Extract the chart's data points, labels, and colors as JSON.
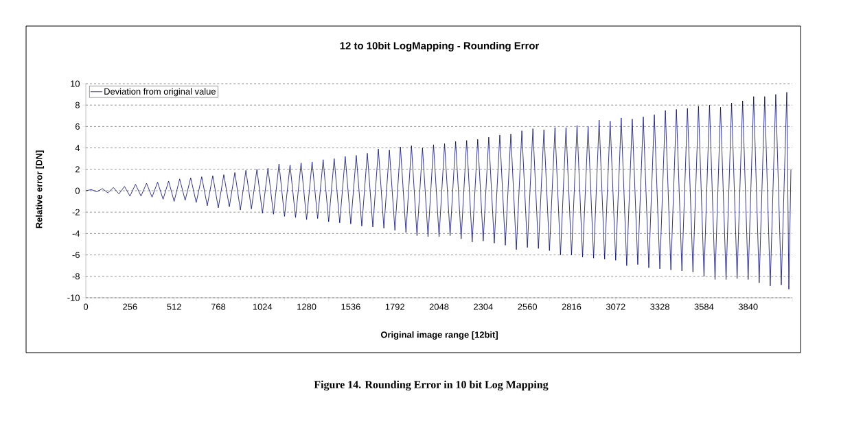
{
  "chart_data": {
    "type": "line",
    "title": "12 to 10bit LogMapping - Rounding Error",
    "xlabel": "Original image range [12bit]",
    "ylabel": "Relative error [DN]",
    "annotations": [
      "Figure 14.  Rounding Error in 10 bit Log Mapping"
    ],
    "xlim": [
      0,
      4096
    ],
    "ylim": [
      -10,
      10
    ],
    "xticks": [
      0,
      {
        "value": 128,
        "label": null
      },
      256,
      {
        "value": 384,
        "label": null
      },
      512,
      {
        "value": 640,
        "label": null
      },
      768,
      {
        "value": 896,
        "label": null
      },
      1024,
      {
        "value": 1152,
        "label": null
      },
      1280,
      {
        "value": 1408,
        "label": null
      },
      1536,
      {
        "value": 1664,
        "label": null
      },
      1792,
      {
        "value": 1920,
        "label": null
      },
      2048,
      {
        "value": 2176,
        "label": null
      },
      2304,
      {
        "value": 2432,
        "label": null
      },
      2560,
      {
        "value": 2688,
        "label": null
      },
      2816,
      {
        "value": 2944,
        "label": null
      },
      3072,
      {
        "value": 3200,
        "label": null
      },
      3328,
      {
        "value": 3456,
        "label": null
      },
      3584,
      {
        "value": 3712,
        "label": null
      },
      3840,
      {
        "value": 3968,
        "label": null
      },
      {
        "value": 4096,
        "label": null
      }
    ],
    "yticks": [
      -10,
      -8,
      -6,
      -4,
      -2,
      0,
      2,
      4,
      6,
      8,
      10
    ],
    "grid": "y",
    "legend": "top left",
    "line_style": "solid",
    "marker": "none",
    "series": [
      {
        "name": "Deviation from original value",
        "color": "#000080",
        "x": [
          0,
          32,
          64,
          96,
          128,
          160,
          192,
          224,
          256,
          288,
          320,
          352,
          384,
          416,
          448,
          480,
          512,
          544,
          576,
          608,
          640,
          672,
          704,
          736,
          768,
          800,
          832,
          864,
          896,
          928,
          960,
          992,
          1024,
          1056,
          1088,
          1120,
          1152,
          1184,
          1216,
          1248,
          1280,
          1312,
          1344,
          1376,
          1408,
          1440,
          1472,
          1504,
          1536,
          1568,
          1600,
          1632,
          1664,
          1696,
          1728,
          1760,
          1792,
          1824,
          1856,
          1888,
          1920,
          1952,
          1984,
          2016,
          2048,
          2080,
          2112,
          2144,
          2176,
          2208,
          2240,
          2272,
          2304,
          2336,
          2368,
          2400,
          2432,
          2464,
          2496,
          2528,
          2560,
          2592,
          2624,
          2656,
          2688,
          2720,
          2752,
          2784,
          2816,
          2848,
          2880,
          2912,
          2944,
          2976,
          3008,
          3040,
          3072,
          3104,
          3136,
          3168,
          3200,
          3232,
          3264,
          3296,
          3328,
          3360,
          3392,
          3424,
          3456,
          3488,
          3520,
          3552,
          3584,
          3616,
          3648,
          3680,
          3712,
          3744,
          3776,
          3808,
          3840,
          3872,
          3904,
          3936,
          3968,
          4000,
          4032,
          4064,
          4076,
          4088
        ],
        "values": [
          0,
          0.1,
          -0.1,
          0.2,
          -0.2,
          0.3,
          -0.3,
          0.4,
          -0.5,
          0.6,
          -0.5,
          0.7,
          -0.6,
          0.8,
          -0.8,
          0.9,
          -1.0,
          1.1,
          -0.9,
          1.2,
          -1.1,
          1.3,
          -1.4,
          1.4,
          -1.6,
          1.5,
          -1.5,
          1.7,
          -1.8,
          1.9,
          -1.7,
          2.0,
          -2.1,
          2.1,
          -2.2,
          2.5,
          -2.4,
          2.4,
          -2.5,
          2.6,
          -2.7,
          2.7,
          -2.6,
          2.9,
          -2.9,
          3.0,
          -3.0,
          3.2,
          -3.1,
          3.3,
          -3.3,
          3.5,
          -3.4,
          3.9,
          -3.5,
          3.8,
          -3.7,
          4.1,
          -3.9,
          4.2,
          -4.2,
          4.0,
          -4.3,
          4.3,
          -4.3,
          4.4,
          -4.2,
          4.6,
          -4.5,
          4.7,
          -4.8,
          4.8,
          -4.7,
          5.0,
          -4.9,
          5.2,
          -5.1,
          5.3,
          -5.5,
          5.6,
          -5.3,
          5.8,
          -5.4,
          5.7,
          -5.6,
          5.9,
          -6.0,
          5.9,
          -6.0,
          6.1,
          -6.2,
          6.0,
          -6.3,
          6.6,
          -6.4,
          6.5,
          -6.5,
          6.8,
          -7.0,
          6.7,
          -6.9,
          6.9,
          -7.2,
          7.1,
          -7.3,
          7.5,
          -7.4,
          7.6,
          -7.5,
          7.7,
          -7.6,
          7.9,
          -8.0,
          8.0,
          -8.3,
          7.8,
          -8.3,
          8.2,
          -8.2,
          8.4,
          -8.3,
          8.8,
          -8.6,
          8.8,
          -8.9,
          9.0,
          -8.8,
          9.2,
          -9.2,
          2.0
        ]
      }
    ]
  }
}
